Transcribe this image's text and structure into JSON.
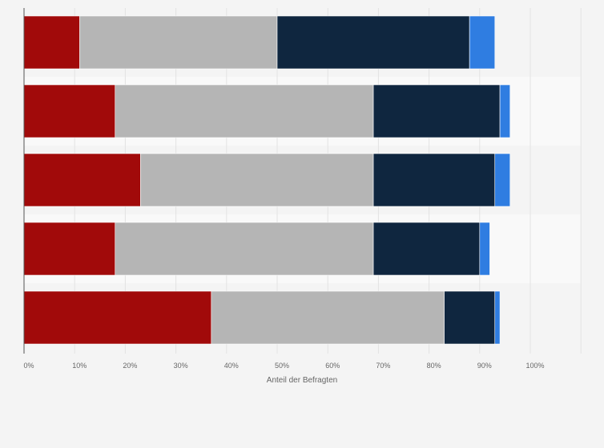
{
  "chart_data": {
    "type": "bar",
    "orientation": "horizontal",
    "stacked": true,
    "categories": [
      "",
      "",
      "",
      "",
      ""
    ],
    "series": [
      {
        "values": [
          11,
          18,
          23,
          18,
          37
        ],
        "color": "#a10a0a"
      },
      {
        "values": [
          39,
          51,
          46,
          51,
          46
        ],
        "color": "#b5b5b5"
      },
      {
        "values": [
          38,
          25,
          24,
          21,
          10
        ],
        "color": "#0f263f"
      },
      {
        "values": [
          5,
          2,
          3,
          2,
          1
        ],
        "color": "#2f7de1"
      }
    ],
    "xlabel": "Anteil der Befragten",
    "ylabel": "",
    "xlim": [
      0,
      110
    ],
    "x_ticks": [
      "0%",
      "10%",
      "20%",
      "30%",
      "40%",
      "50%",
      "60%",
      "70%",
      "80%",
      "90%",
      "100%"
    ],
    "grid": true,
    "legend": "none"
  }
}
